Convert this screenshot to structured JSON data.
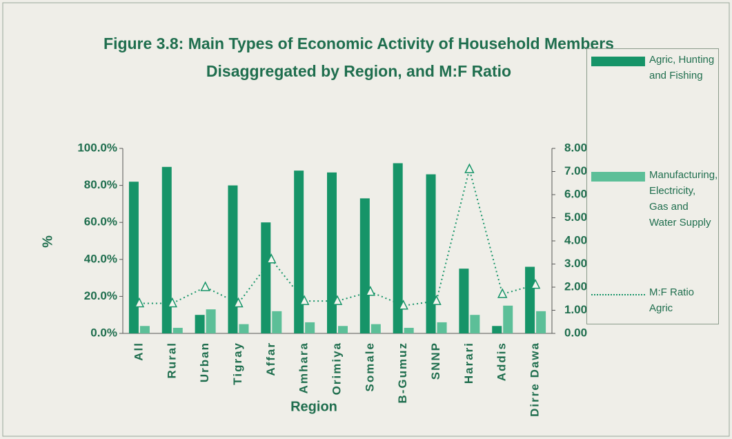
{
  "chart_data": {
    "type": "bar",
    "title": [
      "Figure 3.8: Main Types of Economic Activity of Household Members",
      "Disaggregated by Region, and M:F Ratio"
    ],
    "x_label": "Region",
    "y_label": "%",
    "categories": [
      "All",
      "Rural",
      "Urban",
      "Tigray",
      "Affar",
      "Amhara",
      "Orimiya",
      "Somale",
      "B-Gumuz",
      "SNNP",
      "Harari",
      "Addis",
      "Dirre Dawa"
    ],
    "series": [
      {
        "name": "Agric, Hunting and Fishing",
        "color": "#169468",
        "values": [
          82,
          90,
          10,
          80,
          60,
          88,
          87,
          73,
          92,
          86,
          35,
          4,
          36
        ]
      },
      {
        "name": "Manufacturing, Electricity, Gas and Water Supply",
        "color": "#5cbf98",
        "values": [
          4,
          3,
          13,
          5,
          12,
          6,
          4,
          5,
          3,
          6,
          10,
          15,
          12
        ]
      },
      {
        "name": "M:F Ratio Agric",
        "color": "#169468",
        "type": "line",
        "axis": "y2",
        "values": [
          1.3,
          1.3,
          2.0,
          1.3,
          3.2,
          1.4,
          1.4,
          1.8,
          1.2,
          1.4,
          7.1,
          1.7,
          2.1
        ]
      }
    ],
    "ylim": [
      0,
      100
    ],
    "yticks": [
      {
        "value": 0,
        "label": "0.0%"
      },
      {
        "value": 20,
        "label": "20.0%"
      },
      {
        "value": 40,
        "label": "40.0%"
      },
      {
        "value": 60,
        "label": "60.0%"
      },
      {
        "value": 80,
        "label": "80.0%"
      },
      {
        "value": 100,
        "label": "100.0%"
      }
    ],
    "y2lim": [
      0,
      8
    ],
    "y2ticks": [
      {
        "value": 0,
        "label": "0.00"
      },
      {
        "value": 1,
        "label": "1.00"
      },
      {
        "value": 2,
        "label": "2.00"
      },
      {
        "value": 3,
        "label": "3.00"
      },
      {
        "value": 4,
        "label": "4.00"
      },
      {
        "value": 5,
        "label": "5.00"
      },
      {
        "value": 6,
        "label": "6.00"
      },
      {
        "value": 7,
        "label": "7.00"
      },
      {
        "value": 8,
        "label": "8.00"
      }
    ],
    "grid": false,
    "legend": "right"
  }
}
